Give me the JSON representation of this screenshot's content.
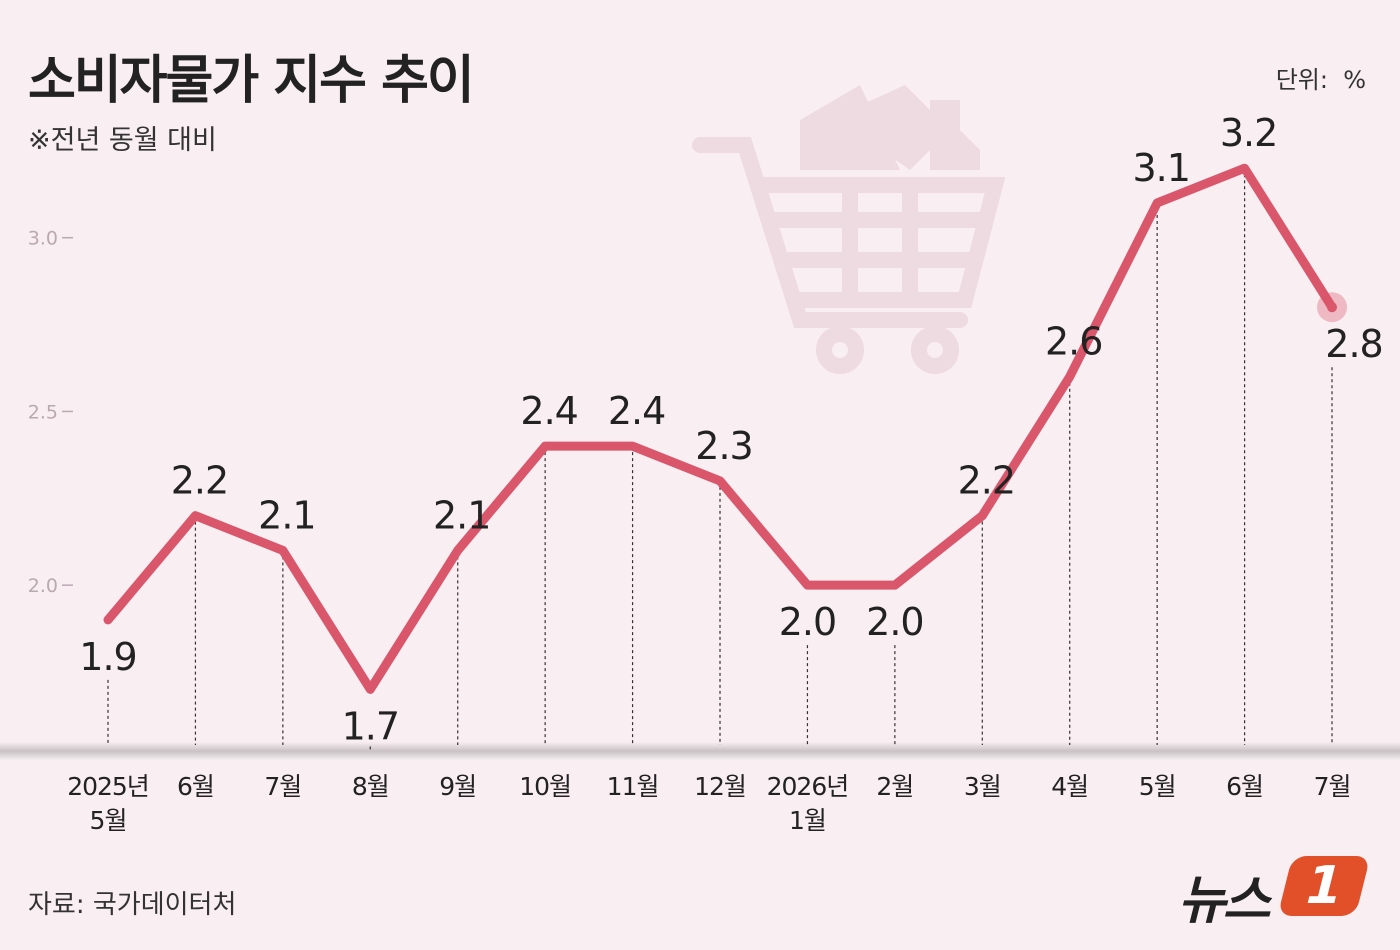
{
  "chart_data": {
    "type": "line",
    "title": "소비자물가 지수 추이",
    "subtitle": "※전년 동월 대비",
    "unit": "단위:  %",
    "source": "자료: 국가데이터처",
    "logo": {
      "text": "뉴스",
      "mark": "1"
    },
    "categories": [
      "2025년\n5월",
      "6월",
      "7월",
      "8월",
      "9월",
      "10월",
      "11월",
      "12월",
      "2026년\n1월",
      "2월",
      "3월",
      "4월",
      "5월",
      "6월",
      "7월"
    ],
    "values": [
      1.9,
      2.2,
      2.1,
      1.7,
      2.1,
      2.4,
      2.4,
      2.3,
      2.0,
      2.0,
      2.2,
      2.6,
      3.1,
      3.2,
      2.8
    ],
    "value_labels": [
      "1.9",
      "2.2",
      "2.1",
      "1.7",
      "2.1",
      "2.4",
      "2.4",
      "2.3",
      "2.0",
      "2.0",
      "2.2",
      "2.6",
      "3.1",
      "3.2",
      "2.8"
    ],
    "color": "#d9566b",
    "ylim": [
      1.54,
      3.31
    ],
    "yticks": [
      {
        "value": 2,
        "label": "2.0"
      },
      {
        "value": 2.5,
        "label": "2.5"
      },
      {
        "value": 3,
        "label": "3.0"
      }
    ]
  }
}
